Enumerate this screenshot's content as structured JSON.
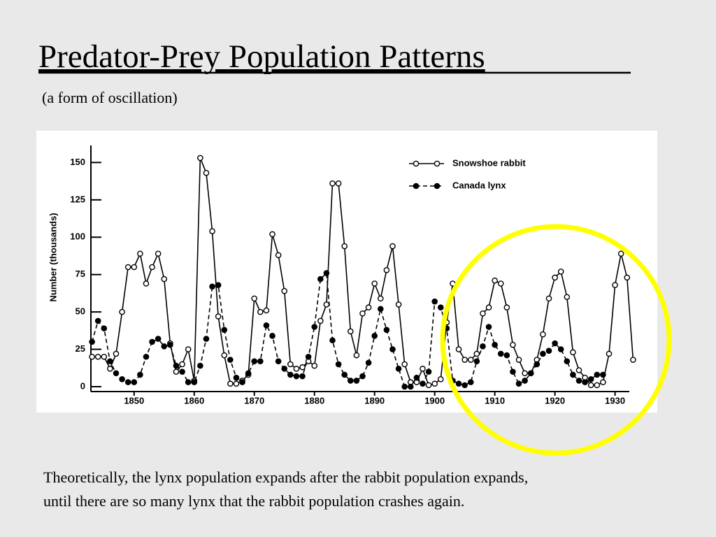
{
  "slide": {
    "title": "Predator-Prey Population Patterns",
    "subtitle": "(a form of oscillation)",
    "caption": [
      "Theoretically, the lynx population expands after the rabbit population expands,",
      "until there are so many lynx that the rabbit population crashes again."
    ]
  },
  "chart_data": {
    "type": "line",
    "y_label": "Number (thousands)",
    "x": [
      1843,
      1844,
      1845,
      1846,
      1847,
      1848,
      1849,
      1850,
      1851,
      1852,
      1853,
      1854,
      1855,
      1856,
      1857,
      1858,
      1859,
      1860,
      1861,
      1862,
      1863,
      1864,
      1865,
      1866,
      1867,
      1868,
      1869,
      1870,
      1871,
      1872,
      1873,
      1874,
      1875,
      1876,
      1877,
      1878,
      1879,
      1880,
      1881,
      1882,
      1883,
      1884,
      1885,
      1886,
      1887,
      1888,
      1889,
      1890,
      1891,
      1892,
      1893,
      1894,
      1895,
      1896,
      1897,
      1898,
      1899,
      1900,
      1901,
      1902,
      1903,
      1904,
      1905,
      1906,
      1907,
      1908,
      1909,
      1910,
      1911,
      1912,
      1913,
      1914,
      1915,
      1916,
      1917,
      1918,
      1919,
      1920,
      1921,
      1922,
      1923,
      1924,
      1925,
      1926,
      1927,
      1928,
      1929,
      1930,
      1931,
      1932,
      1933
    ],
    "series": [
      {
        "name": "Snowshoe rabbit",
        "color": "#000000",
        "line_style": "solid",
        "marker": "open",
        "values": [
          20,
          20,
          20,
          12,
          22,
          50,
          80,
          80,
          89,
          69,
          80,
          89,
          72,
          29,
          10,
          15,
          25,
          4,
          153,
          143,
          104,
          47,
          21,
          2,
          2,
          4,
          8,
          59,
          50,
          51,
          102,
          88,
          64,
          15,
          12,
          13,
          17,
          14,
          44,
          55,
          136,
          136,
          94,
          37,
          21,
          49,
          53,
          69,
          59,
          78,
          94,
          55,
          15,
          3,
          3,
          12,
          1,
          2,
          5,
          43,
          69,
          25,
          18,
          18,
          22,
          49,
          53,
          71,
          69,
          53,
          28,
          18,
          9,
          9,
          18,
          35,
          59,
          73,
          77,
          60,
          23,
          11,
          6,
          1,
          1,
          3,
          22,
          68,
          89,
          73,
          18
        ]
      },
      {
        "name": "Canada lynx",
        "color": "#000000",
        "line_style": "dashed",
        "marker": "filled",
        "values": [
          30,
          44,
          39,
          17,
          9,
          5,
          3,
          3,
          8,
          20,
          30,
          32,
          27,
          28,
          14,
          10,
          3,
          3,
          14,
          32,
          67,
          68,
          38,
          18,
          6,
          3,
          9,
          17,
          17,
          41,
          34,
          17,
          12,
          8,
          7,
          7,
          20,
          40,
          72,
          76,
          31,
          15,
          8,
          4,
          4,
          7,
          16,
          34,
          52,
          38,
          25,
          12,
          0,
          0,
          6,
          2,
          10,
          57,
          53,
          39,
          4,
          2,
          1,
          3,
          17,
          27,
          40,
          28,
          22,
          21,
          10,
          2,
          4,
          9,
          15,
          22,
          24,
          29,
          25,
          17,
          8,
          4,
          3,
          5,
          8,
          8,
          null,
          null,
          null,
          null,
          null
        ]
      }
    ],
    "xlim": [
      1842,
      1934
    ],
    "xticks": [
      1850,
      1860,
      1870,
      1880,
      1890,
      1900,
      1910,
      1920,
      1930
    ],
    "ylim": [
      0,
      160
    ],
    "yticks": [
      0,
      25,
      50,
      75,
      100,
      125,
      150
    ],
    "legend": "upper right",
    "grid": false
  }
}
